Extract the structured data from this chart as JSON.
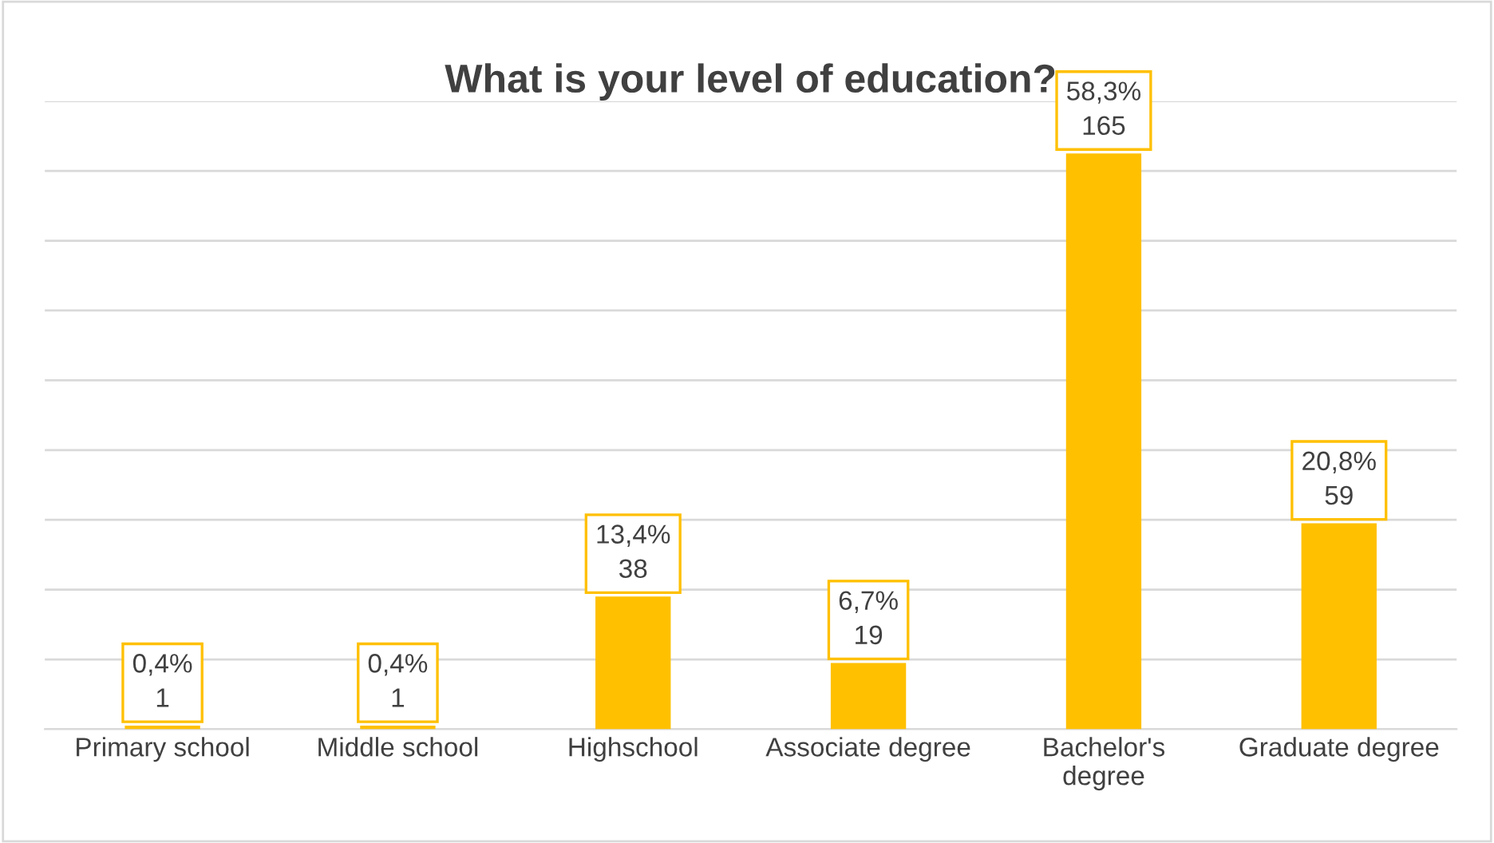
{
  "chart_data": {
    "type": "bar",
    "title": "What is your level of education?",
    "categories": [
      "Primary school",
      "Middle school",
      "Highschool",
      "Associate degree",
      "Bachelor's\ndegree",
      "Graduate degree"
    ],
    "values": [
      1,
      1,
      38,
      19,
      165,
      59
    ],
    "value_labels": [
      "0,4%\n1",
      "0,4%\n1",
      "13,4%\n38",
      "6,7%\n19",
      "58,3%\n165",
      "20,8%\n59"
    ],
    "color": "#ffc000",
    "ylim": [
      0,
      180
    ],
    "yticks": [
      {
        "value": 0,
        "label": null
      },
      {
        "value": 20,
        "label": null
      },
      {
        "value": 40,
        "label": null
      },
      {
        "value": 60,
        "label": null
      },
      {
        "value": 80,
        "label": null
      },
      {
        "value": 100,
        "label": null
      },
      {
        "value": 120,
        "label": null
      },
      {
        "value": 140,
        "label": null
      },
      {
        "value": 160,
        "label": null
      },
      {
        "value": 180,
        "label": null
      }
    ],
    "tick_labels": "x",
    "grid": "y",
    "legend": false
  }
}
